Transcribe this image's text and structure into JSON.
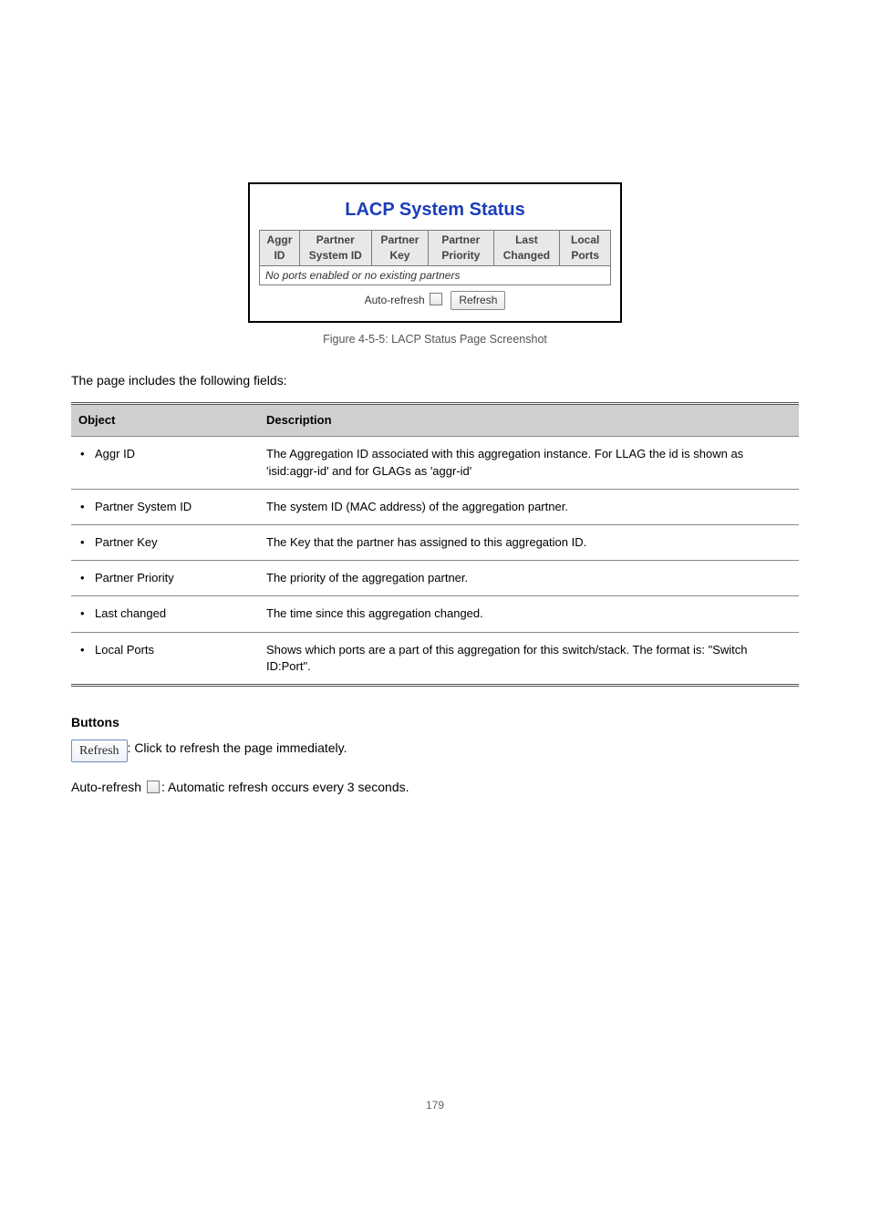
{
  "figure": {
    "title": "LACP System Status",
    "columns": [
      "Aggr ID",
      "Partner System ID",
      "Partner Key",
      "Partner Priority",
      "Last Changed",
      "Local Ports"
    ],
    "message": "No ports enabled or no existing partners",
    "auto_refresh_label": "Auto-refresh",
    "refresh_label": "Refresh"
  },
  "figcaption": "Figure 4-5-5: LACP Status Page Screenshot",
  "intro": "The page includes the following fields:",
  "objdesc": {
    "head_object": "Object",
    "head_desc": "Description",
    "rows": [
      {
        "obj": "Aggr ID",
        "desc": "The Aggregation ID associated with this aggregation instance. For LLAG the id is shown as 'isid:aggr-id' and for GLAGs as 'aggr-id'"
      },
      {
        "obj": "Partner System ID",
        "desc": "The system ID (MAC address) of the aggregation partner."
      },
      {
        "obj": "Partner Key",
        "desc": "The Key that the partner has assigned to this aggregation ID."
      },
      {
        "obj": "Partner Priority",
        "desc": "The priority of the aggregation partner."
      },
      {
        "obj": "Last changed",
        "desc": "The time since this aggregation changed."
      },
      {
        "obj": "Local Ports",
        "desc": "Shows which ports are a part of this aggregation for this switch/stack. The format is: \"Switch ID:Port\"."
      }
    ]
  },
  "section_buttons": "Buttons",
  "refresh_desc": ": Click to refresh the page immediately.",
  "autorefresh_before": "Auto-refresh",
  "autorefresh_after": ": Automatic refresh occurs every 3 seconds.",
  "footer": "179"
}
